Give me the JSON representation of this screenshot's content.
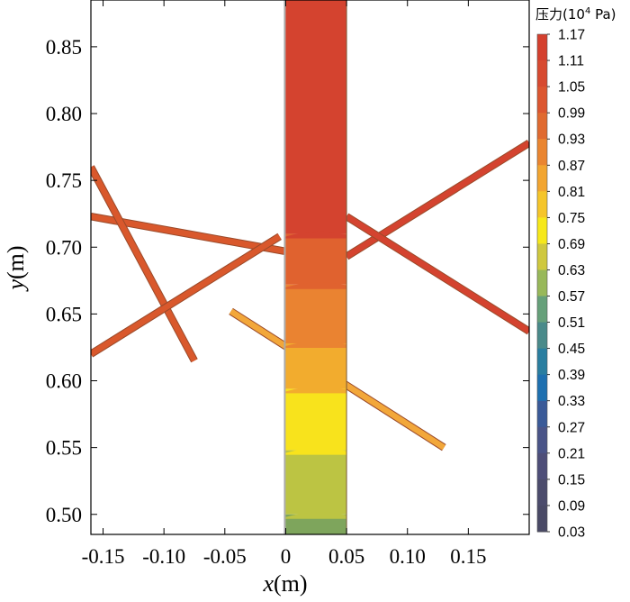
{
  "chart_data": {
    "type": "heatmap",
    "xlabel_var": "x",
    "xlabel_unit": "(m)",
    "ylabel_var": "y",
    "ylabel_unit": "(m)",
    "xlim": [
      -0.16,
      0.2
    ],
    "ylim": [
      0.485,
      0.885
    ],
    "x_ticks": [
      {
        "value": -0.15,
        "label": "-0.15"
      },
      {
        "value": -0.1,
        "label": "-0.10"
      },
      {
        "value": -0.05,
        "label": "-0.05"
      },
      {
        "value": 0.0,
        "label": "0"
      },
      {
        "value": 0.05,
        "label": "0.05"
      },
      {
        "value": 0.1,
        "label": "0.10"
      },
      {
        "value": 0.15,
        "label": "0.15"
      }
    ],
    "y_ticks": [
      {
        "value": 0.5,
        "label": "0.50"
      },
      {
        "value": 0.55,
        "label": "0.55"
      },
      {
        "value": 0.6,
        "label": "0.60"
      },
      {
        "value": 0.65,
        "label": "0.65"
      },
      {
        "value": 0.7,
        "label": "0.70"
      },
      {
        "value": 0.75,
        "label": "0.75"
      },
      {
        "value": 0.8,
        "label": "0.80"
      },
      {
        "value": 0.85,
        "label": "0.85"
      }
    ],
    "colorbar": {
      "title": "压力(10",
      "title_sup": "4",
      "title_unit": " Pa)",
      "levels": [
        "1.17",
        "1.11",
        "1.05",
        "0.99",
        "0.93",
        "0.87",
        "0.81",
        "0.75",
        "0.69",
        "0.63",
        "0.57",
        "0.51",
        "0.45",
        "0.39",
        "0.33",
        "0.27",
        "0.21",
        "0.15",
        "0.09",
        "0.03"
      ],
      "colors": [
        "#d4402e",
        "#d74a30",
        "#dc5630",
        "#e06a30",
        "#ea8530",
        "#f2a530",
        "#f5c52a",
        "#f6e81a",
        "#cfc83e",
        "#98b85a",
        "#66a07a",
        "#4a8a8a",
        "#2a7ea0",
        "#1e70b0",
        "#3a5a98",
        "#4a5488",
        "#4e4e78",
        "#4c4c6c",
        "#4a4a66"
      ]
    },
    "domain_main": {
      "x_range": [
        0.0,
        0.05
      ],
      "y_range": [
        0.485,
        0.885
      ],
      "bands": [
        {
          "y_from": 0.485,
          "y_to": 0.5,
          "value": 0.66,
          "color": "#7ea55c"
        },
        {
          "y_from": 0.5,
          "y_to": 0.548,
          "value": 0.72,
          "color": "#bcc443"
        },
        {
          "y_from": 0.548,
          "y_to": 0.594,
          "value": 0.8,
          "color": "#f8e31c"
        },
        {
          "y_from": 0.594,
          "y_to": 0.628,
          "value": 0.88,
          "color": "#f2ac2e"
        },
        {
          "y_from": 0.628,
          "y_to": 0.672,
          "value": 0.94,
          "color": "#ea8331"
        },
        {
          "y_from": 0.672,
          "y_to": 0.71,
          "value": 1.0,
          "color": "#e0622f"
        },
        {
          "y_from": 0.71,
          "y_to": 0.885,
          "value": 1.1,
          "color": "#d4432f"
        }
      ]
    },
    "tubes": [
      {
        "color": "#d9582c",
        "points": [
          [
            -0.16,
            0.723
          ],
          [
            -0.001,
            0.697
          ]
        ]
      },
      {
        "color": "#d9582c",
        "points": [
          [
            -0.16,
            0.76
          ],
          [
            -0.075,
            0.615
          ]
        ]
      },
      {
        "color": "#d9582c",
        "points": [
          [
            -0.16,
            0.62
          ],
          [
            -0.005,
            0.708
          ]
        ]
      },
      {
        "color": "#f2a73a",
        "points": [
          [
            -0.045,
            0.652
          ],
          [
            0.13,
            0.55
          ]
        ]
      },
      {
        "color": "#d4432f",
        "points": [
          [
            0.05,
            0.693
          ],
          [
            0.2,
            0.778
          ]
        ]
      },
      {
        "color": "#d4432f",
        "points": [
          [
            0.05,
            0.723
          ],
          [
            0.2,
            0.637
          ]
        ]
      }
    ]
  }
}
